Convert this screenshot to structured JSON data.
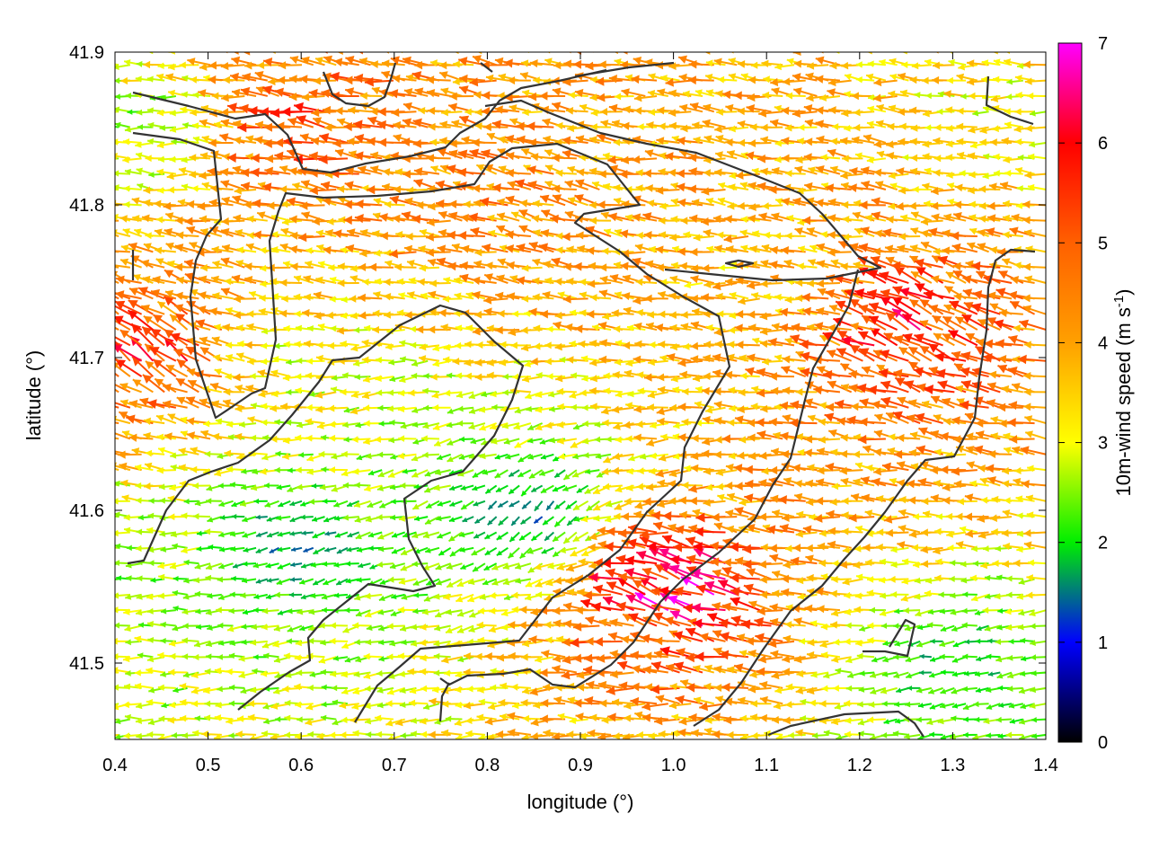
{
  "chart_data": {
    "type": "vector-field",
    "xlabel": "longitude (°)",
    "ylabel": "latitude (°)",
    "xlim": [
      0.4,
      1.4
    ],
    "ylim": [
      41.45,
      41.9
    ],
    "xticks": [
      "0.4",
      "0.5",
      "0.6",
      "0.7",
      "0.8",
      "0.9",
      "1.0",
      "1.1",
      "1.2",
      "1.3",
      "1.4"
    ],
    "yticks": [
      "41.5",
      "41.6",
      "41.7",
      "41.8",
      "41.9"
    ],
    "colorbar": {
      "label": "10m-wind speed (m s-1)",
      "label_main": "10m-wind speed (m s",
      "label_sup": "-1",
      "label_end": ")",
      "range": [
        0,
        7
      ],
      "ticks": [
        "0",
        "1",
        "2",
        "3",
        "4",
        "5",
        "6",
        "7"
      ],
      "stops": [
        {
          "value": 0,
          "color": "#000000"
        },
        {
          "value": 1,
          "color": "#0000ff"
        },
        {
          "value": 2,
          "color": "#00ee00"
        },
        {
          "value": 3,
          "color": "#ffff00"
        },
        {
          "value": 4,
          "color": "#ffa000"
        },
        {
          "value": 5,
          "color": "#ff6000"
        },
        {
          "value": 6,
          "color": "#ff0000"
        },
        {
          "value": 7,
          "color": "#ff00ff"
        }
      ]
    },
    "wind_field_sample": [
      {
        "lon": 0.45,
        "lat": 41.85,
        "speed": 2.2,
        "dir_deg": 180
      },
      {
        "lon": 0.45,
        "lat": 41.7,
        "speed": 5.8,
        "dir_deg": 135
      },
      {
        "lon": 0.45,
        "lat": 41.55,
        "speed": 2.5,
        "dir_deg": 180
      },
      {
        "lon": 0.6,
        "lat": 41.85,
        "speed": 5.5,
        "dir_deg": 170
      },
      {
        "lon": 0.6,
        "lat": 41.7,
        "speed": 2.8,
        "dir_deg": 180
      },
      {
        "lon": 0.6,
        "lat": 41.58,
        "speed": 1.3,
        "dir_deg": 200
      },
      {
        "lon": 0.75,
        "lat": 41.78,
        "speed": 4.2,
        "dir_deg": 175
      },
      {
        "lon": 0.75,
        "lat": 41.65,
        "speed": 2.5,
        "dir_deg": 190
      },
      {
        "lon": 0.85,
        "lat": 41.6,
        "speed": 1.0,
        "dir_deg": 230
      },
      {
        "lon": 0.85,
        "lat": 41.8,
        "speed": 4.5,
        "dir_deg": 160
      },
      {
        "lon": 1.0,
        "lat": 41.85,
        "speed": 4.0,
        "dir_deg": 175
      },
      {
        "lon": 1.0,
        "lat": 41.55,
        "speed": 6.8,
        "dir_deg": 155
      },
      {
        "lon": 1.1,
        "lat": 41.75,
        "speed": 3.5,
        "dir_deg": 180
      },
      {
        "lon": 1.25,
        "lat": 41.72,
        "speed": 5.8,
        "dir_deg": 150
      },
      {
        "lon": 1.3,
        "lat": 41.5,
        "speed": 1.8,
        "dir_deg": 190
      },
      {
        "lon": 1.35,
        "lat": 41.85,
        "speed": 3.0,
        "dir_deg": 180
      }
    ]
  }
}
